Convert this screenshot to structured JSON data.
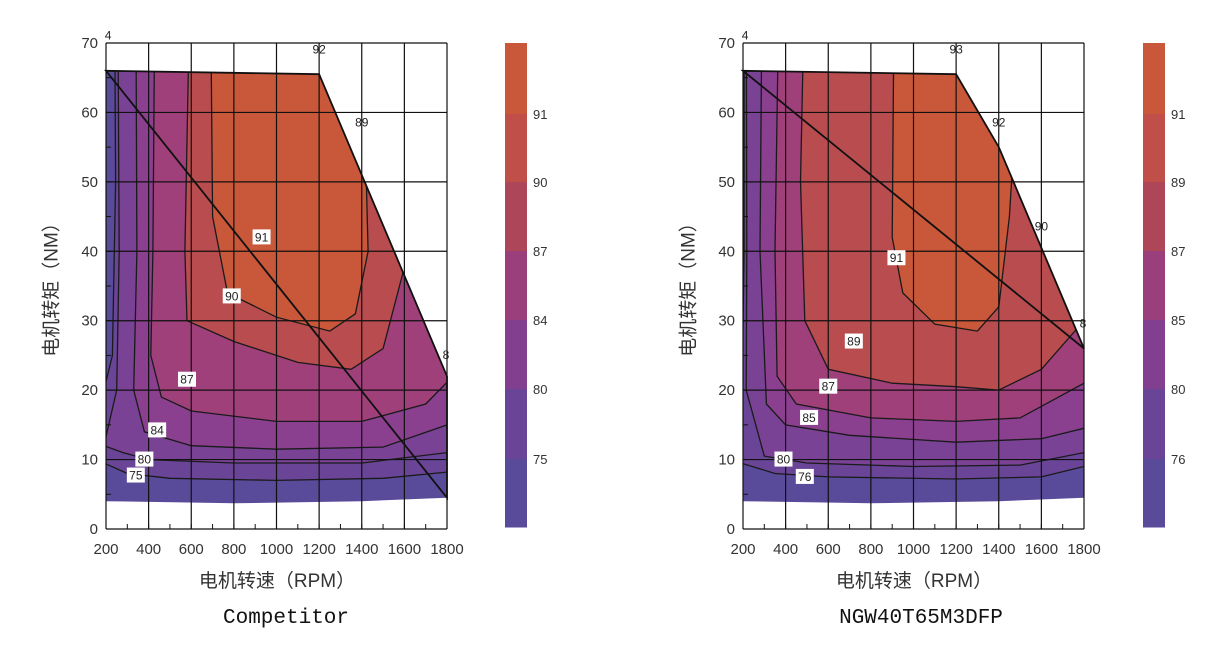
{
  "chart_data": [
    {
      "type": "heatmap",
      "subtype": "contour efficiency map",
      "title": "Competitor",
      "xlabel": "电机转速（RPM）",
      "ylabel": "电机转矩（NM）",
      "xlim": [
        200,
        1800
      ],
      "ylim": [
        0,
        70
      ],
      "xticks": [
        200,
        400,
        600,
        800,
        1000,
        1200,
        1400,
        1600,
        1800
      ],
      "yticks": [
        0,
        10,
        20,
        30,
        40,
        50,
        60,
        70
      ],
      "grid": true,
      "colorbar": {
        "ticks": [
          "91",
          "90",
          "87",
          "84",
          "80",
          "75"
        ],
        "colors": [
          "#c9583a",
          "#bf4f48",
          "#ad4659",
          "#9b3f7c",
          "#833f8f",
          "#6a4597",
          "#5a4b9a"
        ]
      },
      "boundary": [
        [
          200,
          66
        ],
        [
          1200,
          65.5
        ],
        [
          1800,
          22
        ],
        [
          1800,
          4.5
        ],
        [
          1400,
          4
        ],
        [
          800,
          3.7
        ],
        [
          200,
          4
        ]
      ],
      "contours": [
        {
          "level": 75,
          "color": "#6a4597",
          "points": [
            [
              190,
              9.5
            ],
            [
              300,
              8
            ],
            [
              500,
              7.3
            ],
            [
              1000,
              7
            ],
            [
              1500,
              7.3
            ],
            [
              1800,
              8.2
            ],
            [
              1860,
              8.2
            ],
            [
              1860,
              80
            ],
            [
              240,
              80
            ],
            [
              245,
              50
            ],
            [
              230,
              25
            ],
            [
              190,
              20
            ]
          ]
        },
        {
          "level": 80,
          "color": "#7a4295",
          "points": [
            [
              190,
              12
            ],
            [
              280,
              11
            ],
            [
              400,
              10
            ],
            [
              800,
              9.5
            ],
            [
              1400,
              9.5
            ],
            [
              1800,
              11
            ],
            [
              1860,
              11
            ],
            [
              1860,
              80
            ],
            [
              255,
              80
            ],
            [
              262,
              40
            ],
            [
              250,
              20
            ]
          ]
        },
        {
          "level": 84,
          "color": "#8a3f8f",
          "points": [
            [
              330,
              20
            ],
            [
              380,
              14
            ],
            [
              600,
              12
            ],
            [
              1000,
              11.5
            ],
            [
              1500,
              11.8
            ],
            [
              1800,
              15
            ],
            [
              1860,
              15
            ],
            [
              1860,
              80
            ],
            [
              340,
              80
            ],
            [
              345,
              40
            ]
          ]
        },
        {
          "level": 87,
          "color": "#a0407a",
          "points": [
            [
              410,
              25
            ],
            [
              460,
              19
            ],
            [
              600,
              17
            ],
            [
              1000,
              15.5
            ],
            [
              1400,
              15.5
            ],
            [
              1700,
              18
            ],
            [
              1860,
              23
            ],
            [
              1860,
              80
            ],
            [
              430,
              80
            ],
            [
              420,
              40
            ]
          ]
        },
        {
          "level": 90,
          "color": "#b94c4e",
          "points": [
            [
              580,
              30
            ],
            [
              800,
              27
            ],
            [
              1100,
              24
            ],
            [
              1350,
              23
            ],
            [
              1500,
              26
            ],
            [
              1620,
              40
            ],
            [
              1650,
              80
            ],
            [
              595,
              80
            ],
            [
              570,
              40
            ]
          ]
        },
        {
          "level": 91,
          "color": "#c9573a",
          "points": [
            [
              700,
              45
            ],
            [
              770,
              34
            ],
            [
              1000,
              30.5
            ],
            [
              1250,
              28.5
            ],
            [
              1370,
              31
            ],
            [
              1430,
              40
            ],
            [
              1420,
              52
            ],
            [
              1600,
              80
            ],
            [
              690,
              80
            ]
          ]
        }
      ],
      "inline_labels": [
        {
          "text": "91",
          "x": 930,
          "y": 42
        },
        {
          "text": "90",
          "x": 790,
          "y": 33.5
        },
        {
          "text": "87",
          "x": 580,
          "y": 21.5
        },
        {
          "text": "84",
          "x": 440,
          "y": 14.2
        },
        {
          "text": "80",
          "x": 380,
          "y": 10
        },
        {
          "text": "75",
          "x": 340,
          "y": 7.7
        }
      ],
      "edge_labels": [
        {
          "text": "4",
          "x": 210,
          "y": 70.5
        },
        {
          "text": "92",
          "x": 1200,
          "y": 68.5
        },
        {
          "text": "89",
          "x": 1400,
          "y": 58
        },
        {
          "text": "8",
          "x": 1795,
          "y": 24.5
        }
      ]
    },
    {
      "type": "heatmap",
      "subtype": "contour efficiency map",
      "title": "NGW40T65M3DFP",
      "xlabel": "电机转速（RPM）",
      "ylabel": "电机转矩（NM）",
      "xlim": [
        200,
        1800
      ],
      "ylim": [
        0,
        70
      ],
      "xticks": [
        200,
        400,
        600,
        800,
        1000,
        1200,
        1400,
        1600,
        1800
      ],
      "yticks": [
        0,
        10,
        20,
        30,
        40,
        50,
        60,
        70
      ],
      "grid": true,
      "colorbar": {
        "ticks": [
          "91",
          "89",
          "87",
          "85",
          "80",
          "76"
        ],
        "colors": [
          "#c9583a",
          "#bf4f48",
          "#ad4659",
          "#9b3f7c",
          "#833f8f",
          "#6a4597",
          "#5a4b9a"
        ]
      },
      "boundary": [
        [
          200,
          66
        ],
        [
          1200,
          65.5
        ],
        [
          1400,
          55
        ],
        [
          1800,
          26
        ],
        [
          1800,
          4.5
        ],
        [
          1400,
          4
        ],
        [
          800,
          3.7
        ],
        [
          200,
          4
        ]
      ],
      "contours": [
        {
          "level": 76,
          "color": "#6a4597",
          "points": [
            [
              190,
              9.5
            ],
            [
              350,
              8
            ],
            [
              600,
              7.5
            ],
            [
              1200,
              7.2
            ],
            [
              1600,
              7.5
            ],
            [
              1800,
              9
            ],
            [
              1860,
              9
            ],
            [
              1860,
              80
            ],
            [
              205,
              80
            ],
            [
              205,
              40
            ]
          ]
        },
        {
          "level": 80,
          "color": "#7a4295",
          "points": [
            [
              215,
              20
            ],
            [
              300,
              10.5
            ],
            [
              500,
              9.5
            ],
            [
              1000,
              9
            ],
            [
              1500,
              9.2
            ],
            [
              1800,
              11
            ],
            [
              1860,
              11
            ],
            [
              1860,
              80
            ],
            [
              215,
              80
            ],
            [
              218,
              40
            ]
          ]
        },
        {
          "level": 85,
          "color": "#8a3f8f",
          "points": [
            [
              310,
              18
            ],
            [
              400,
              15
            ],
            [
              700,
              13.5
            ],
            [
              1200,
              12.5
            ],
            [
              1600,
              13
            ],
            [
              1800,
              14.5
            ],
            [
              1860,
              15
            ],
            [
              1860,
              80
            ],
            [
              290,
              80
            ],
            [
              280,
              40
            ]
          ]
        },
        {
          "level": 87,
          "color": "#a0407a",
          "points": [
            [
              360,
              22
            ],
            [
              450,
              18
            ],
            [
              800,
              16
            ],
            [
              1200,
              15.5
            ],
            [
              1500,
              16
            ],
            [
              1800,
              21
            ],
            [
              1860,
              22
            ],
            [
              1860,
              80
            ],
            [
              370,
              80
            ],
            [
              350,
              40
            ]
          ]
        },
        {
          "level": 89,
          "color": "#b94c4e",
          "points": [
            [
              490,
              30
            ],
            [
              600,
              23
            ],
            [
              900,
              21
            ],
            [
              1200,
              20.5
            ],
            [
              1400,
              20
            ],
            [
              1600,
              23
            ],
            [
              1800,
              30
            ],
            [
              1860,
              32
            ],
            [
              1860,
              80
            ],
            [
              490,
              80
            ],
            [
              470,
              50
            ]
          ]
        },
        {
          "level": 91,
          "color": "#c9573a",
          "points": [
            [
              900,
              42
            ],
            [
              950,
              34
            ],
            [
              1100,
              29.5
            ],
            [
              1300,
              28.5
            ],
            [
              1400,
              32
            ],
            [
              1450,
              45
            ],
            [
              1520,
              80
            ],
            [
              910,
              80
            ]
          ]
        }
      ],
      "inline_labels": [
        {
          "text": "91",
          "x": 920,
          "y": 39
        },
        {
          "text": "89",
          "x": 720,
          "y": 27
        },
        {
          "text": "87",
          "x": 600,
          "y": 20.5
        },
        {
          "text": "85",
          "x": 510,
          "y": 16
        },
        {
          "text": "80",
          "x": 390,
          "y": 10
        },
        {
          "text": "76",
          "x": 490,
          "y": 7.5
        }
      ],
      "edge_labels": [
        {
          "text": "4",
          "x": 210,
          "y": 70.5
        },
        {
          "text": "93",
          "x": 1200,
          "y": 68.5
        },
        {
          "text": "92",
          "x": 1400,
          "y": 58
        },
        {
          "text": "90",
          "x": 1600,
          "y": 43
        },
        {
          "text": "8",
          "x": 1795,
          "y": 29
        }
      ]
    }
  ]
}
